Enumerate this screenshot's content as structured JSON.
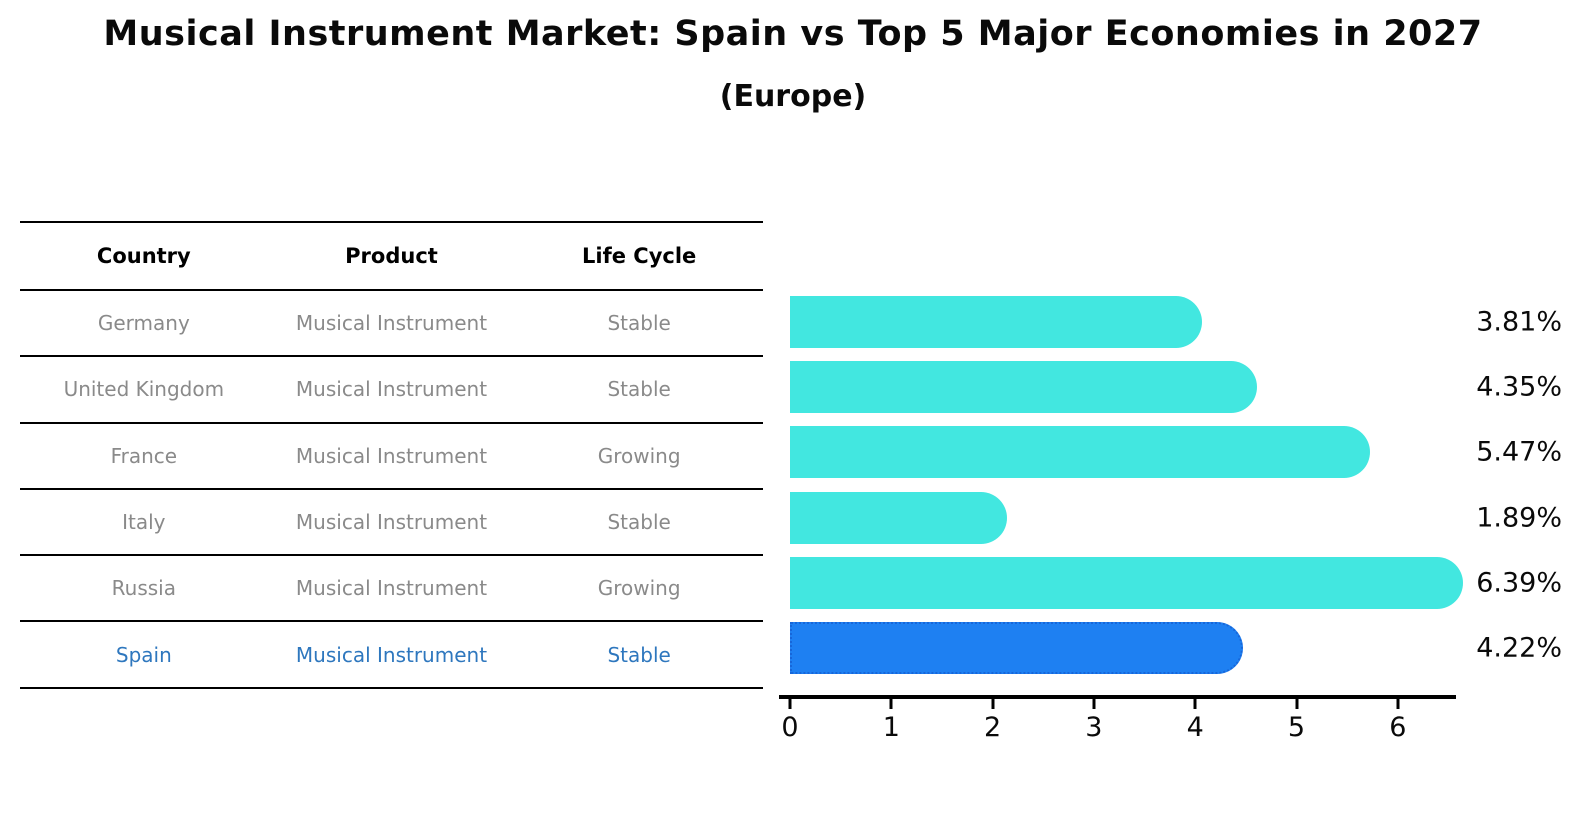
{
  "title": "Musical Instrument Market: Spain vs Top 5 Major Economies in 2027",
  "subtitle": "(Europe)",
  "table": {
    "headers": [
      "Country",
      "Product",
      "Life Cycle"
    ],
    "rows": [
      {
        "country": "Germany",
        "product": "Musical Instrument",
        "life_cycle": "Stable",
        "highlight": false
      },
      {
        "country": "United Kingdom",
        "product": "Musical Instrument",
        "life_cycle": "Stable",
        "highlight": false
      },
      {
        "country": "France",
        "product": "Musical Instrument",
        "life_cycle": "Growing",
        "highlight": false
      },
      {
        "country": "Italy",
        "product": "Musical Instrument",
        "life_cycle": "Stable",
        "highlight": false
      },
      {
        "country": "Russia",
        "product": "Musical Instrument",
        "life_cycle": "Growing",
        "highlight": false
      },
      {
        "country": "Spain",
        "product": "Musical Instrument",
        "life_cycle": "Stable",
        "highlight": true
      }
    ]
  },
  "chart_data": {
    "type": "bar",
    "orientation": "horizontal",
    "title": "Musical Instrument Market: Spain vs Top 5 Major Economies in 2027 (Europe)",
    "categories": [
      "Germany",
      "United Kingdom",
      "France",
      "Italy",
      "Russia",
      "Spain"
    ],
    "values": [
      3.81,
      4.35,
      5.47,
      1.89,
      6.39,
      4.22
    ],
    "value_labels": [
      "3.81%",
      "4.35%",
      "5.47%",
      "1.89%",
      "6.39%",
      "4.22%"
    ],
    "xlim": [
      0,
      6.57
    ],
    "xticks": [
      "0",
      "1",
      "2",
      "3",
      "4",
      "5",
      "6"
    ],
    "grid": false,
    "legend": false,
    "highlight_category": "Spain",
    "bar_color": "#42e7e0",
    "highlight_bar_color": "#1e80f2",
    "highlight_border_color": "#1766d9"
  },
  "colors": {
    "highlight_text": "#2e77be",
    "table_text": "#8a8a8a",
    "axis": "#000000"
  }
}
